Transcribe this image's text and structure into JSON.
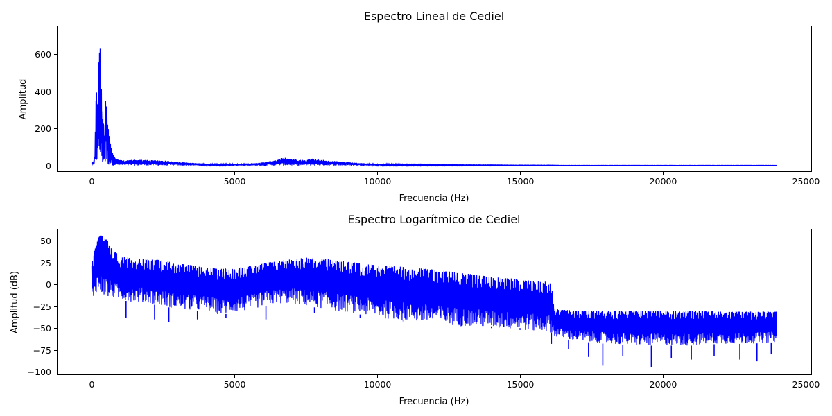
{
  "chart_data": [
    {
      "type": "line",
      "title": "Espectro Lineal de Cediel",
      "xlabel": "Frecuencia (Hz)",
      "ylabel": "Amplitud",
      "xlim": [
        -1200,
        25200
      ],
      "ylim": [
        -30,
        750
      ],
      "xticks": [
        0,
        5000,
        10000,
        15000,
        20000,
        25000
      ],
      "yticks": [
        0,
        200,
        400,
        600
      ],
      "grid": false,
      "series": [
        {
          "color": "#0000ff",
          "x": [
            0,
            40,
            80,
            100,
            120,
            150,
            180,
            200,
            220,
            250,
            260,
            280,
            300,
            320,
            340,
            360,
            380,
            400,
            430,
            460,
            500,
            530,
            560,
            600,
            650,
            700,
            750,
            800,
            900,
            1000,
            1200,
            1500,
            2000,
            2500,
            3000,
            3500,
            4000,
            4500,
            5000,
            5500,
            6000,
            6500,
            6700,
            7000,
            7500,
            7700,
            8000,
            8500,
            9000,
            9500,
            10000,
            11000,
            12000,
            13000,
            14000,
            15000,
            16000,
            16500,
            17000,
            18000,
            19000,
            20000,
            21000,
            22000,
            23000,
            24000
          ],
          "upper": [
            18,
            22,
            30,
            60,
            200,
            450,
            420,
            300,
            420,
            600,
            715,
            680,
            620,
            380,
            430,
            300,
            320,
            260,
            200,
            250,
            430,
            290,
            250,
            190,
            130,
            80,
            65,
            50,
            35,
            30,
            28,
            33,
            30,
            28,
            20,
            15,
            10,
            8,
            10,
            12,
            18,
            30,
            45,
            35,
            30,
            38,
            33,
            25,
            18,
            13,
            10,
            7,
            6,
            5,
            4,
            3,
            3,
            2,
            2,
            2,
            2,
            2,
            2,
            2,
            2,
            2
          ],
          "lower": [
            0,
            0,
            0,
            0,
            0,
            0,
            0,
            0,
            0,
            0,
            0,
            0,
            0,
            0,
            0,
            0,
            0,
            0,
            0,
            0,
            0,
            0,
            0,
            0,
            0,
            0,
            0,
            0,
            0,
            0,
            0,
            0,
            0,
            0,
            0,
            0,
            0,
            0,
            0,
            0,
            0,
            0,
            0,
            0,
            0,
            0,
            0,
            0,
            0,
            0,
            0,
            0,
            0,
            0,
            0,
            0,
            0,
            0,
            0,
            0,
            0,
            0,
            0,
            0,
            0,
            0
          ]
        }
      ]
    },
    {
      "type": "line",
      "title": "Espectro Logarítmico de Cediel",
      "xlabel": "Frecuencia (Hz)",
      "ylabel": "Amplitud (dB)",
      "xlim": [
        -1200,
        25200
      ],
      "ylim": [
        -103,
        63
      ],
      "xticks": [
        0,
        5000,
        10000,
        15000,
        20000,
        25000
      ],
      "yticks": [
        -100,
        -75,
        -50,
        -25,
        0,
        25,
        50
      ],
      "grid": false,
      "series": [
        {
          "color": "#0000ff",
          "x": [
            0,
            50,
            100,
            200,
            300,
            400,
            500,
            600,
            700,
            800,
            1000,
            1500,
            2000,
            2500,
            3000,
            3500,
            4000,
            4500,
            5000,
            5500,
            6000,
            6500,
            7000,
            7500,
            8000,
            8500,
            9000,
            9500,
            10000,
            10500,
            11000,
            12000,
            13000,
            14000,
            15000,
            15500,
            16000,
            16100,
            16200,
            16500,
            17000,
            18000,
            19000,
            20000,
            21000,
            22000,
            23000,
            24000
          ],
          "upper": [
            25,
            30,
            45,
            52,
            57,
            55,
            52,
            48,
            42,
            38,
            32,
            30,
            29,
            28,
            24,
            22,
            19,
            18,
            19,
            21,
            24,
            27,
            29,
            31,
            30,
            28,
            26,
            24,
            22,
            21,
            20,
            17,
            13,
            9,
            6,
            4,
            3,
            2,
            -28,
            -29,
            -30,
            -30,
            -30,
            -30,
            -30,
            -31,
            -31,
            -31
          ],
          "lower": [
            -20,
            -18,
            -10,
            -8,
            -12,
            -14,
            -14,
            -18,
            -15,
            -17,
            -18,
            -20,
            -22,
            -25,
            -28,
            -30,
            -30,
            -35,
            -32,
            -30,
            -25,
            -22,
            -22,
            -25,
            -27,
            -30,
            -32,
            -35,
            -38,
            -40,
            -42,
            -45,
            -48,
            -50,
            -52,
            -54,
            -55,
            -55,
            -60,
            -62,
            -65,
            -68,
            -70,
            -70,
            -70,
            -68,
            -68,
            -66
          ],
          "min_spikes": [
            [
              1200,
              -38
            ],
            [
              2200,
              -40
            ],
            [
              2700,
              -43
            ],
            [
              3700,
              -40
            ],
            [
              4700,
              -38
            ],
            [
              6100,
              -40
            ],
            [
              7800,
              -33
            ],
            [
              9400,
              -38
            ],
            [
              10900,
              -42
            ],
            [
              12100,
              -45
            ],
            [
              13000,
              -48
            ],
            [
              14000,
              -48
            ],
            [
              15000,
              -50
            ],
            [
              16100,
              -68
            ],
            [
              16700,
              -74
            ],
            [
              17400,
              -83
            ],
            [
              17900,
              -93
            ],
            [
              18600,
              -82
            ],
            [
              19600,
              -95
            ],
            [
              20300,
              -84
            ],
            [
              21000,
              -86
            ],
            [
              21800,
              -82
            ],
            [
              22700,
              -86
            ],
            [
              23300,
              -88
            ],
            [
              23800,
              -80
            ]
          ]
        }
      ]
    }
  ]
}
